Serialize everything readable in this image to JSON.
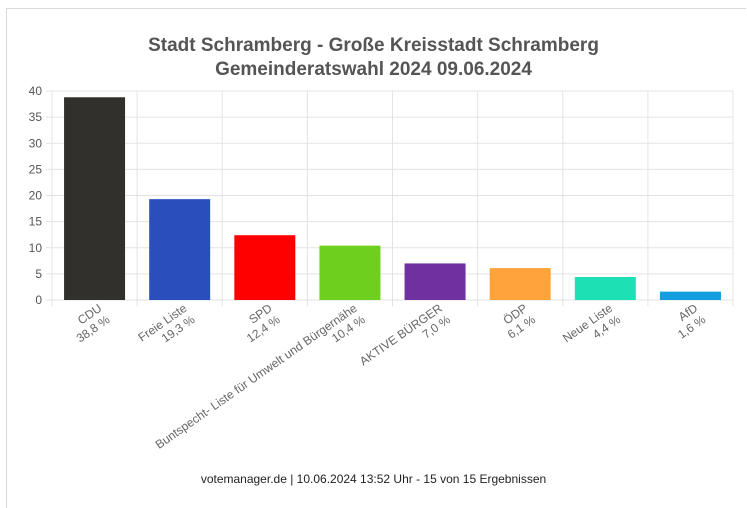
{
  "chart_data": {
    "type": "bar",
    "title_line1": "Stadt Schramberg - Große Kreisstadt Schramberg",
    "title_line2": "Gemeinderatswahl 2024 09.06.2024",
    "categories": [
      "CDU",
      "Freie Liste",
      "SPD",
      "Buntspecht- Liste für Umwelt und Bürgernähe",
      "AKTIVE BÜRGER",
      "ÖDP",
      "Neue Liste",
      "AfD"
    ],
    "value_labels": [
      "38,8 %",
      "19,3 %",
      "12,4 %",
      "10,4 %",
      "7,0 %",
      "6,1 %",
      "4,4 %",
      "1,6 %"
    ],
    "values": [
      38.8,
      19.3,
      12.4,
      10.4,
      7.0,
      6.1,
      4.4,
      1.6
    ],
    "colors": [
      "#32302c",
      "#2a4fbd",
      "#ff0000",
      "#6fcf1f",
      "#7030a0",
      "#ffa33a",
      "#1de0b5",
      "#139ee0"
    ],
    "ylim": [
      0,
      40
    ],
    "yticks": [
      0,
      5,
      10,
      15,
      20,
      25,
      30,
      35,
      40
    ],
    "grid": true,
    "legend": "none"
  },
  "footer": "votemanager.de | 10.06.2024 13:52 Uhr - 15 von 15 Ergebnissen"
}
